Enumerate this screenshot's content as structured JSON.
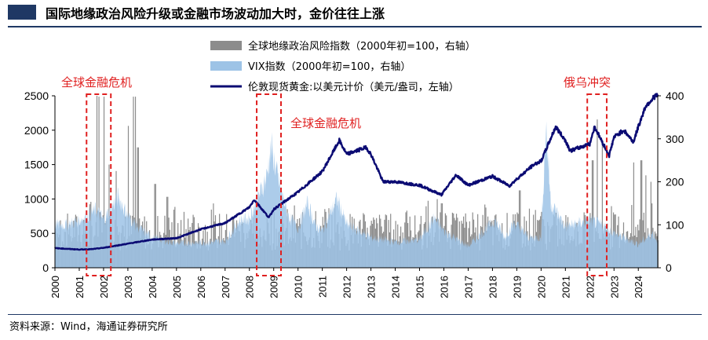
{
  "title": "国际地缘政治风险升级或金融市场波动加大时，金价往往上涨",
  "source": "资料来源：Wind，海通证券研究所",
  "colors": {
    "gpr": "#8c8c8c",
    "vix": "#9dc3e6",
    "gold": "#0b0b73",
    "annotation": "#e02020",
    "title_bar": "#1f3864"
  },
  "chart_data": {
    "type": "line",
    "x_ticks": [
      "2000",
      "2001",
      "2002",
      "2003",
      "2004",
      "2005",
      "2006",
      "2007",
      "2008",
      "2009",
      "2010",
      "2011",
      "2012",
      "2013",
      "2014",
      "2015",
      "2016",
      "2017",
      "2018",
      "2019",
      "2020",
      "2021",
      "2022",
      "2023",
      "2024"
    ],
    "y_left": {
      "ticks": [
        "0",
        "500",
        "1000",
        "1500",
        "2000",
        "2500"
      ],
      "range": [
        0,
        2500
      ]
    },
    "y_right": {
      "ticks": [
        "0",
        "100",
        "200",
        "300",
        "400"
      ],
      "range": [
        0,
        400
      ]
    },
    "xlim": [
      2000,
      2024.8
    ],
    "series": [
      {
        "name": "全球地缘政治风险指数（2000年初=100，右轴）",
        "type": "bar",
        "axis": "right",
        "typical_range": [
          40,
          130
        ],
        "peaks": [
          {
            "x": 2001.7,
            "y": 400
          },
          {
            "x": 2001.8,
            "y": 398
          },
          {
            "x": 2002.0,
            "y": 398
          },
          {
            "x": 2002.2,
            "y": 240
          },
          {
            "x": 2002.5,
            "y": 225
          },
          {
            "x": 2003.0,
            "y": 330
          },
          {
            "x": 2003.2,
            "y": 398
          },
          {
            "x": 2003.3,
            "y": 398
          },
          {
            "x": 2003.4,
            "y": 280
          },
          {
            "x": 2004.1,
            "y": 195
          },
          {
            "x": 2004.6,
            "y": 165
          },
          {
            "x": 2005.3,
            "y": 130
          },
          {
            "x": 2006.5,
            "y": 140
          },
          {
            "x": 2011.1,
            "y": 130
          },
          {
            "x": 2015.9,
            "y": 150
          },
          {
            "x": 2017.7,
            "y": 140
          },
          {
            "x": 2019.1,
            "y": 180
          },
          {
            "x": 2020.0,
            "y": 130
          },
          {
            "x": 2022.1,
            "y": 250
          },
          {
            "x": 2022.3,
            "y": 345
          },
          {
            "x": 2022.5,
            "y": 285
          },
          {
            "x": 2023.8,
            "y": 245
          },
          {
            "x": 2024.1,
            "y": 250
          },
          {
            "x": 2024.3,
            "y": 215
          },
          {
            "x": 2024.5,
            "y": 200
          }
        ]
      },
      {
        "name": "VIX指数（2000年初=100，右轴）",
        "type": "area",
        "axis": "right",
        "points": [
          {
            "x": 2000.0,
            "y": 100
          },
          {
            "x": 2000.5,
            "y": 100
          },
          {
            "x": 2001.0,
            "y": 110
          },
          {
            "x": 2001.7,
            "y": 135
          },
          {
            "x": 2002.0,
            "y": 110
          },
          {
            "x": 2002.6,
            "y": 165
          },
          {
            "x": 2003.0,
            "y": 120
          },
          {
            "x": 2003.5,
            "y": 90
          },
          {
            "x": 2004.0,
            "y": 70
          },
          {
            "x": 2005.0,
            "y": 57
          },
          {
            "x": 2006.0,
            "y": 58
          },
          {
            "x": 2007.0,
            "y": 62
          },
          {
            "x": 2007.6,
            "y": 110
          },
          {
            "x": 2008.0,
            "y": 115
          },
          {
            "x": 2008.7,
            "y": 210
          },
          {
            "x": 2008.9,
            "y": 280
          },
          {
            "x": 2009.2,
            "y": 200
          },
          {
            "x": 2009.6,
            "y": 120
          },
          {
            "x": 2010.0,
            "y": 92
          },
          {
            "x": 2010.4,
            "y": 150
          },
          {
            "x": 2010.7,
            "y": 100
          },
          {
            "x": 2011.0,
            "y": 85
          },
          {
            "x": 2011.6,
            "y": 160
          },
          {
            "x": 2012.0,
            "y": 100
          },
          {
            "x": 2013.0,
            "y": 70
          },
          {
            "x": 2014.0,
            "y": 60
          },
          {
            "x": 2015.0,
            "y": 65
          },
          {
            "x": 2015.6,
            "y": 115
          },
          {
            "x": 2016.0,
            "y": 85
          },
          {
            "x": 2017.0,
            "y": 50
          },
          {
            "x": 2018.1,
            "y": 110
          },
          {
            "x": 2018.5,
            "y": 70
          },
          {
            "x": 2018.9,
            "y": 105
          },
          {
            "x": 2019.5,
            "y": 70
          },
          {
            "x": 2020.0,
            "y": 70
          },
          {
            "x": 2020.2,
            "y": 330
          },
          {
            "x": 2020.4,
            "y": 150
          },
          {
            "x": 2021.0,
            "y": 95
          },
          {
            "x": 2022.0,
            "y": 110
          },
          {
            "x": 2022.5,
            "y": 100
          },
          {
            "x": 2023.0,
            "y": 80
          },
          {
            "x": 2024.0,
            "y": 55
          },
          {
            "x": 2024.6,
            "y": 80
          },
          {
            "x": 2024.8,
            "y": 60
          }
        ]
      },
      {
        "name": "伦敦现货黄金:以美元计价（美元/盎司，左轴）",
        "type": "line",
        "axis": "left",
        "points": [
          {
            "x": 2000.0,
            "y": 285
          },
          {
            "x": 2001.0,
            "y": 265
          },
          {
            "x": 2001.5,
            "y": 270
          },
          {
            "x": 2002.0,
            "y": 290
          },
          {
            "x": 2003.0,
            "y": 350
          },
          {
            "x": 2004.0,
            "y": 410
          },
          {
            "x": 2005.0,
            "y": 430
          },
          {
            "x": 2006.0,
            "y": 560
          },
          {
            "x": 2007.0,
            "y": 650
          },
          {
            "x": 2008.0,
            "y": 880
          },
          {
            "x": 2008.2,
            "y": 990
          },
          {
            "x": 2008.8,
            "y": 730
          },
          {
            "x": 2009.0,
            "y": 850
          },
          {
            "x": 2010.0,
            "y": 1100
          },
          {
            "x": 2011.0,
            "y": 1400
          },
          {
            "x": 2011.7,
            "y": 1850
          },
          {
            "x": 2012.0,
            "y": 1650
          },
          {
            "x": 2012.8,
            "y": 1750
          },
          {
            "x": 2013.0,
            "y": 1650
          },
          {
            "x": 2013.5,
            "y": 1250
          },
          {
            "x": 2014.0,
            "y": 1250
          },
          {
            "x": 2015.0,
            "y": 1200
          },
          {
            "x": 2015.9,
            "y": 1060
          },
          {
            "x": 2016.5,
            "y": 1350
          },
          {
            "x": 2017.0,
            "y": 1200
          },
          {
            "x": 2018.0,
            "y": 1330
          },
          {
            "x": 2018.7,
            "y": 1190
          },
          {
            "x": 2019.0,
            "y": 1290
          },
          {
            "x": 2019.7,
            "y": 1500
          },
          {
            "x": 2020.0,
            "y": 1550
          },
          {
            "x": 2020.6,
            "y": 2050
          },
          {
            "x": 2021.0,
            "y": 1850
          },
          {
            "x": 2021.2,
            "y": 1700
          },
          {
            "x": 2022.0,
            "y": 1800
          },
          {
            "x": 2022.2,
            "y": 2050
          },
          {
            "x": 2022.8,
            "y": 1630
          },
          {
            "x": 2023.0,
            "y": 1900
          },
          {
            "x": 2023.4,
            "y": 2000
          },
          {
            "x": 2023.8,
            "y": 1830
          },
          {
            "x": 2024.0,
            "y": 2050
          },
          {
            "x": 2024.3,
            "y": 2350
          },
          {
            "x": 2024.7,
            "y": 2500
          }
        ]
      }
    ],
    "annotations": [
      {
        "label": "全球金融危机",
        "x_range": [
          2001.3,
          2002.3
        ]
      },
      {
        "label": "全球金融危机",
        "x_range": [
          2008.3,
          2009.3
        ]
      },
      {
        "label": "俄乌冲突",
        "x_range": [
          2021.9,
          2022.7
        ]
      }
    ],
    "legend": {
      "placement": "top-center",
      "entries": [
        "全球地缘政治风险指数（2000年初=100，右轴）",
        "VIX指数（2000年初=100，右轴）",
        "伦敦现货黄金:以美元计价（美元/盎司，左轴）"
      ]
    }
  }
}
